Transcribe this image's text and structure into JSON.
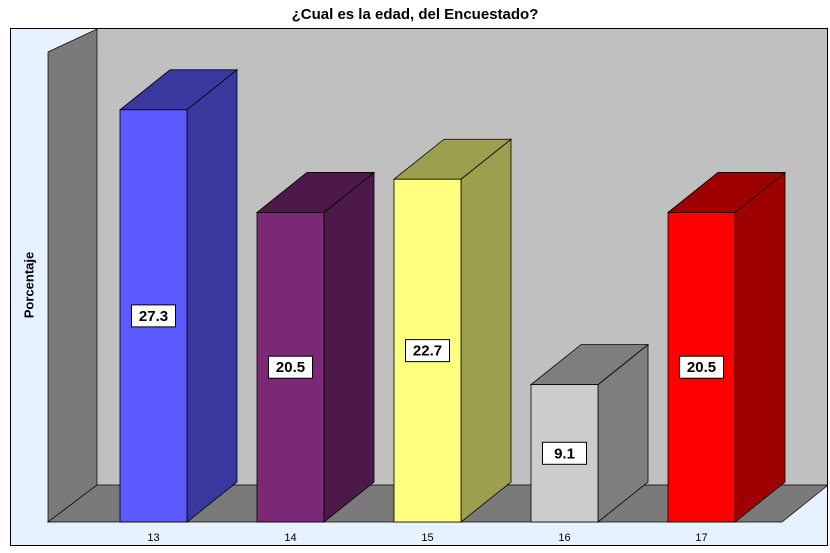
{
  "chart_data": {
    "type": "bar3d",
    "title": "¿Cual es la edad, del Encuestado?",
    "ylabel": "Porcentaje",
    "categories": [
      "13",
      "14",
      "15",
      "16",
      "17"
    ],
    "values": [
      27.3,
      20.5,
      22.7,
      9.1,
      20.5
    ],
    "colors": [
      "#5a5aff",
      "#7b2877",
      "#ffff80",
      "#cccccc",
      "#ff0000"
    ]
  }
}
